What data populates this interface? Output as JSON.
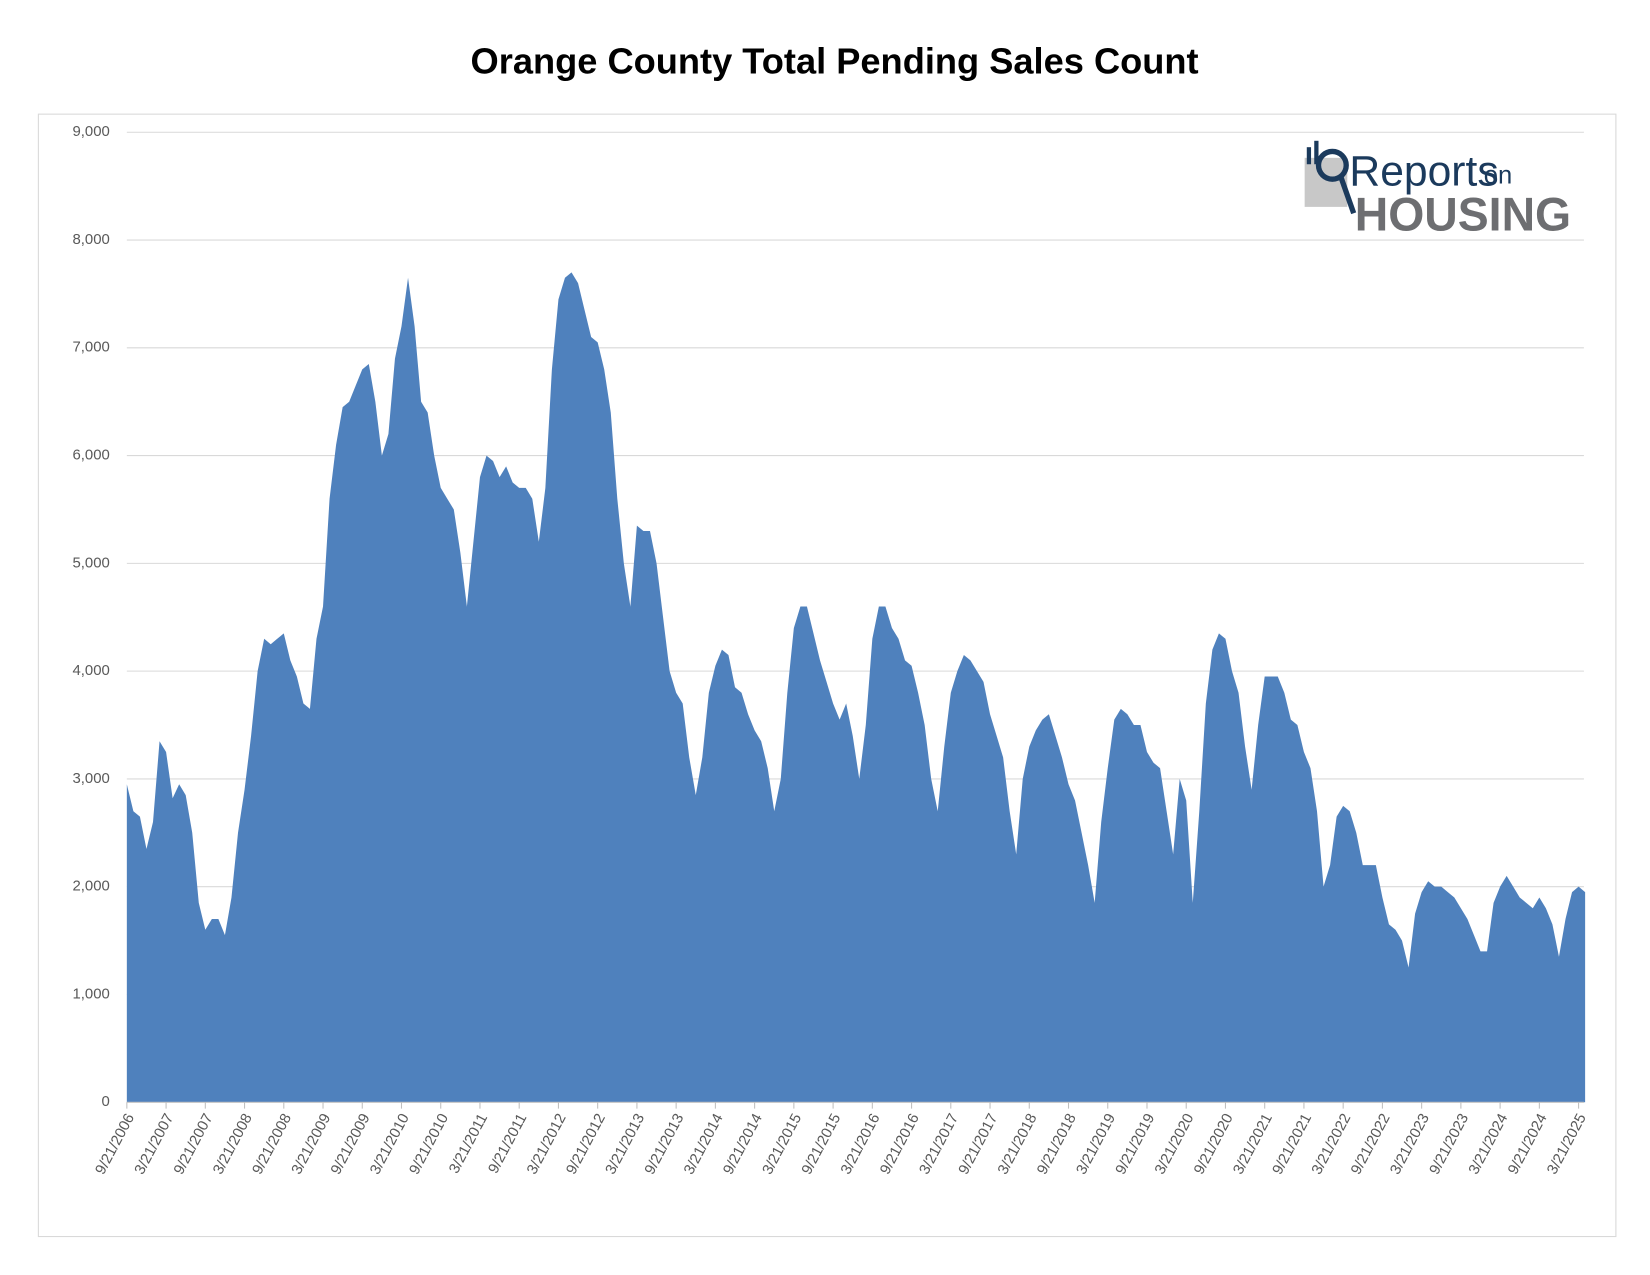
{
  "chart_data": {
    "type": "area",
    "title": "Orange County Total Pending Sales Count",
    "logo": {
      "word": "Reports",
      "small": "on",
      "brand": "HOUSING"
    },
    "color": "#4f81bd",
    "grid": true,
    "ylim": [
      0,
      9000
    ],
    "yticks": [
      0,
      {
        "value": 1000,
        "label": "1,000"
      },
      {
        "value": 2000,
        "label": "2,000"
      },
      {
        "value": 3000,
        "label": "3,000"
      },
      {
        "value": 4000,
        "label": "4,000"
      },
      {
        "value": 5000,
        "label": "5,000"
      },
      {
        "value": 6000,
        "label": "6,000"
      },
      {
        "value": 7000,
        "label": "7,000"
      },
      {
        "value": 8000,
        "label": "8,000"
      },
      {
        "value": 9000,
        "label": "9,000"
      }
    ],
    "categories": [
      "9/21/2006",
      null,
      null,
      null,
      null,
      null,
      "3/21/2007",
      null,
      null,
      null,
      null,
      null,
      "9/21/2007",
      null,
      null,
      null,
      null,
      null,
      "3/21/2008",
      null,
      null,
      null,
      null,
      null,
      "9/21/2008",
      null,
      null,
      null,
      null,
      null,
      "3/21/2009",
      null,
      null,
      null,
      null,
      null,
      "9/21/2009",
      null,
      null,
      null,
      null,
      null,
      "3/21/2010",
      null,
      null,
      null,
      null,
      null,
      "9/21/2010",
      null,
      null,
      null,
      null,
      null,
      "3/21/2011",
      null,
      null,
      null,
      null,
      null,
      "9/21/2011",
      null,
      null,
      null,
      null,
      null,
      "3/21/2012",
      null,
      null,
      null,
      null,
      null,
      "9/21/2012",
      null,
      null,
      null,
      null,
      null,
      "3/21/2013",
      null,
      null,
      null,
      null,
      null,
      "9/21/2013",
      null,
      null,
      null,
      null,
      null,
      "3/21/2014",
      null,
      null,
      null,
      null,
      null,
      "9/21/2014",
      null,
      null,
      null,
      null,
      null,
      "3/21/2015",
      null,
      null,
      null,
      null,
      null,
      "9/21/2015",
      null,
      null,
      null,
      null,
      null,
      "3/21/2016",
      null,
      null,
      null,
      null,
      null,
      "9/21/2016",
      null,
      null,
      null,
      null,
      null,
      "3/21/2017",
      null,
      null,
      null,
      null,
      null,
      "9/21/2017",
      null,
      null,
      null,
      null,
      null,
      "3/21/2018",
      null,
      null,
      null,
      null,
      null,
      "9/21/2018",
      null,
      null,
      null,
      null,
      null,
      "3/21/2019",
      null,
      null,
      null,
      null,
      null,
      "9/21/2019",
      null,
      null,
      null,
      null,
      null,
      "3/21/2020",
      null,
      null,
      null,
      null,
      null,
      "9/21/2020",
      null,
      null,
      null,
      null,
      null,
      "3/21/2021",
      null,
      null,
      null,
      null,
      null,
      "9/21/2021",
      null,
      null,
      null,
      null,
      null,
      "3/21/2022",
      null,
      null,
      null,
      null,
      null,
      "9/21/2022",
      null,
      null,
      null,
      null,
      null,
      "3/21/2023",
      null,
      null,
      null,
      null,
      null,
      "9/21/2023",
      null,
      null,
      null,
      null,
      null,
      "3/21/2024",
      null,
      null,
      null,
      null,
      null,
      "9/21/2024",
      null,
      null,
      null,
      null,
      null,
      "3/21/2025",
      null
    ],
    "values": [
      2950,
      2700,
      2650,
      2350,
      2600,
      3350,
      3250,
      2820,
      2950,
      2850,
      2500,
      1850,
      1600,
      1700,
      1700,
      1550,
      1900,
      2500,
      2900,
      3400,
      4000,
      4300,
      4250,
      4300,
      4350,
      4100,
      3950,
      3700,
      3650,
      4300,
      4600,
      5600,
      6100,
      6450,
      6500,
      6650,
      6800,
      6850,
      6500,
      6000,
      6200,
      6900,
      7200,
      7650,
      7200,
      6500,
      6400,
      6000,
      5700,
      5600,
      5500,
      5100,
      4600,
      5200,
      5800,
      6000,
      5950,
      5800,
      5900,
      5750,
      5700,
      5700,
      5600,
      5200,
      5700,
      6800,
      7450,
      7650,
      7700,
      7600,
      7350,
      7100,
      7050,
      6800,
      6400,
      5600,
      5000,
      4600,
      5350,
      5300,
      5300,
      5000,
      4500,
      4000,
      3800,
      3700,
      3200,
      2850,
      3200,
      3800,
      4050,
      4200,
      4150,
      3850,
      3800,
      3600,
      3450,
      3350,
      3100,
      2700,
      3000,
      3800,
      4400,
      4600,
      4600,
      4350,
      4100,
      3900,
      3700,
      3550,
      3700,
      3400,
      3000,
      3500,
      4300,
      4600,
      4600,
      4400,
      4300,
      4100,
      4050,
      3800,
      3500,
      3000,
      2700,
      3300,
      3800,
      4000,
      4150,
      4100,
      4000,
      3900,
      3600,
      3400,
      3200,
      2700,
      2300,
      3000,
      3300,
      3450,
      3550,
      3600,
      3400,
      3200,
      2950,
      2800,
      2500,
      2200,
      1850,
      2600,
      3100,
      3550,
      3650,
      3600,
      3500,
      3500,
      3250,
      3150,
      3100,
      2700,
      2300,
      3000,
      2800,
      1850,
      2700,
      3700,
      4200,
      4350,
      4300,
      4000,
      3800,
      3300,
      2900,
      3500,
      3950,
      3950,
      3950,
      3800,
      3550,
      3500,
      3250,
      3100,
      2700,
      2000,
      2200,
      2650,
      2750,
      2700,
      2500,
      2200,
      2200,
      2200,
      1900,
      1650,
      1600,
      1500,
      1250,
      1750,
      1950,
      2050,
      2000,
      2000,
      1950,
      1900,
      1800,
      1700,
      1550,
      1400,
      1400,
      1850,
      2000,
      2100,
      2000,
      1900,
      1850,
      1800,
      1900,
      1800,
      1650,
      1350,
      1700,
      1950,
      2000,
      1950
    ]
  }
}
